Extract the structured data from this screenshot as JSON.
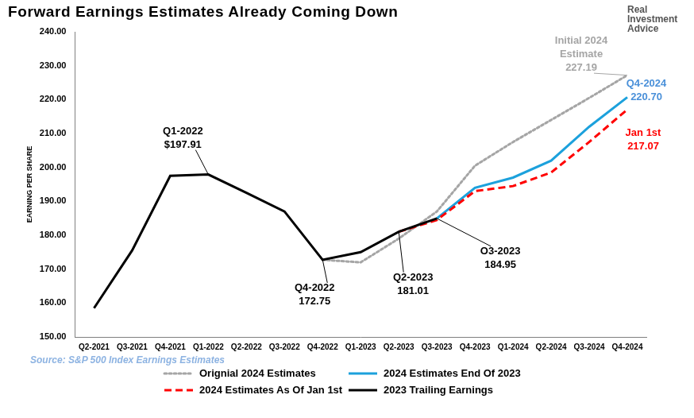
{
  "chart_data": {
    "type": "line",
    "title": "Forward Earnings Estimates Already Coming Down",
    "logo": "Real Investment Advice",
    "source": "Source: S&P 500 Index Earnings Estimates",
    "y_label": "EARNING PER SHARE",
    "categories": [
      "Q2-2021",
      "Q3-2021",
      "Q4-2021",
      "Q1-2022",
      "Q2-2022",
      "Q3-2022",
      "Q4-2022",
      "Q1-2023",
      "Q2-2023",
      "Q3-2023",
      "Q4-2023",
      "Q1-2024",
      "Q2-2024",
      "Q3-2024",
      "Q4-2024"
    ],
    "series": [
      {
        "name": "Orignial 2024 Estimates",
        "color": "#a5a5a5",
        "line_style": "dotted",
        "marker": "none",
        "values": [
          null,
          null,
          null,
          null,
          null,
          null,
          172.75,
          172,
          179,
          187,
          200.5,
          207.5,
          214,
          220.5,
          227.19
        ]
      },
      {
        "name": "2024 Estimates End Of 2023",
        "color": "#1ca1dc",
        "line_style": "solid",
        "marker": "none",
        "values": [
          null,
          null,
          null,
          null,
          null,
          null,
          null,
          null,
          null,
          184.95,
          194,
          197,
          202,
          212,
          220.7
        ]
      },
      {
        "name": "2024 Estimates As Of Jan 1st",
        "color": "#ff0000",
        "line_style": "dashed",
        "marker": "none",
        "values": [
          null,
          null,
          null,
          null,
          null,
          null,
          null,
          null,
          181.01,
          184.5,
          193,
          194.5,
          198.5,
          207.5,
          217.07
        ]
      },
      {
        "name": "2023 Trailing Earnings",
        "color": "#000000",
        "line_style": "solid",
        "marker": "none",
        "values": [
          158.5,
          175.5,
          197.5,
          197.91,
          192.5,
          187,
          172.75,
          175,
          181.01,
          184.95,
          null,
          null,
          null,
          null,
          null
        ]
      }
    ],
    "ylim": [
      150,
      240
    ],
    "yticks": [
      {
        "value": 150,
        "label": "150.00"
      },
      {
        "value": 160,
        "label": "160.00"
      },
      {
        "value": 170,
        "label": "170.00"
      },
      {
        "value": 180,
        "label": "180.00"
      },
      {
        "value": 190,
        "label": "190.00"
      },
      {
        "value": 200,
        "label": "200.00"
      },
      {
        "value": 210,
        "label": "210.00"
      },
      {
        "value": 220,
        "label": "220.00"
      },
      {
        "value": 230,
        "label": "230.00"
      },
      {
        "value": 240,
        "label": "240.00"
      }
    ],
    "grid": false,
    "legend": "bottom",
    "annotations": [
      {
        "text": [
          "Q1-2022",
          "$197.91"
        ],
        "series": "2023 Trailing Earnings",
        "category": "Q1-2022",
        "color": "#000000"
      },
      {
        "text": [
          "Q4-2022",
          "172.75"
        ],
        "series": "2023 Trailing Earnings",
        "category": "Q4-2022",
        "color": "#000000"
      },
      {
        "text": [
          "Q2-2023",
          "181.01"
        ],
        "series": "2023 Trailing Earnings",
        "category": "Q2-2023",
        "color": "#000000"
      },
      {
        "text": [
          "O3-2023",
          "184.95"
        ],
        "series": "2023 Trailing Earnings",
        "category": "Q3-2023",
        "color": "#000000"
      },
      {
        "text": [
          "Initial 2024",
          "Estimate",
          "227.19"
        ],
        "series": "Orignial 2024 Estimates",
        "category": "Q4-2024",
        "color": "#a5a5a5"
      },
      {
        "text": [
          "Q4-2024",
          "220.70"
        ],
        "series": "2024 Estimates End Of 2023",
        "category": "Q4-2024",
        "color": "#4a90d9"
      },
      {
        "text": [
          "Jan 1st",
          "217.07"
        ],
        "series": "2024 Estimates As Of Jan 1st",
        "category": "Q4-2024",
        "color": "#ff0000"
      }
    ]
  }
}
